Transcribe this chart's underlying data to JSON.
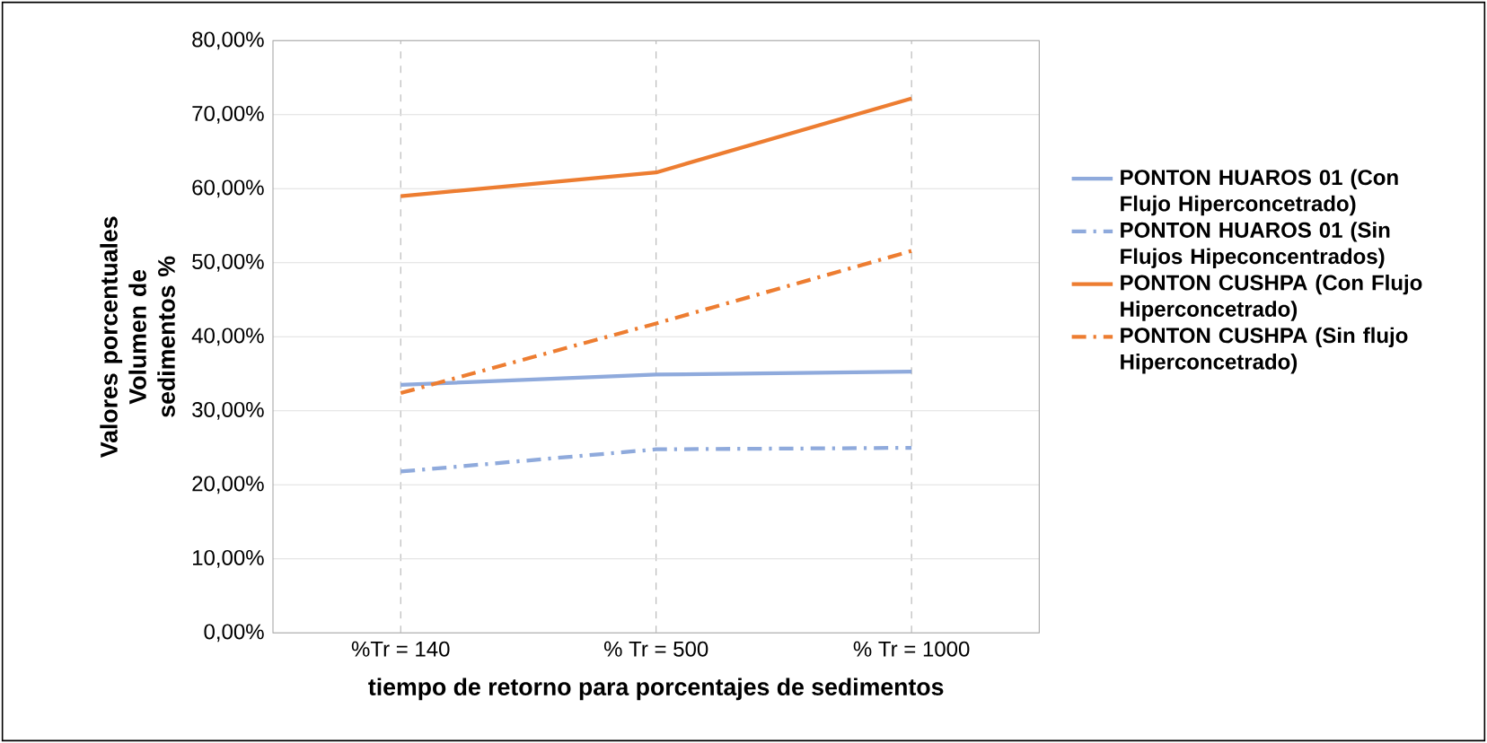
{
  "chart_data": {
    "type": "line",
    "xlabel": "tiempo de retorno para porcentajes de sedimentos",
    "ylabel": "Valores porcentuales Volumen de sedimentos %",
    "categories": [
      "%Tr = 140",
      "% Tr = 500",
      "% Tr = 1000"
    ],
    "series": [
      {
        "name": "PONTON HUAROS 01 (Con Flujo Hiperconcetrado)",
        "color": "#8faadc",
        "line_style": "solid",
        "values": [
          33.5,
          34.9,
          35.3
        ]
      },
      {
        "name": "PONTON HUAROS 01 (Sin Flujos Hipeconcentrados)",
        "color": "#8faadc",
        "line_style": "dashdot",
        "values": [
          21.8,
          24.8,
          25.0
        ]
      },
      {
        "name": "PONTON CUSHPA (Con Flujo Hiperconcetrado)",
        "color": "#ed7d31",
        "line_style": "solid",
        "values": [
          59.0,
          62.2,
          72.2
        ]
      },
      {
        "name": "PONTON CUSHPA (Sin flujo Hiperconcetrado)",
        "color": "#ed7d31",
        "line_style": "dashdot",
        "values": [
          32.4,
          41.8,
          51.6
        ]
      }
    ],
    "ylim": [
      0,
      80
    ],
    "yticks": [
      {
        "value": 0,
        "label": "0,00%"
      },
      {
        "value": 10,
        "label": "10,00%"
      },
      {
        "value": 20,
        "label": "20,00%"
      },
      {
        "value": 30,
        "label": "30,00%"
      },
      {
        "value": 40,
        "label": "40,00%"
      },
      {
        "value": 50,
        "label": "50,00%"
      },
      {
        "value": 60,
        "label": "60,00%"
      },
      {
        "value": 70,
        "label": "70,00%"
      },
      {
        "value": 80,
        "label": "80,00%"
      }
    ],
    "grid": true,
    "legend": "right",
    "marker": "none"
  }
}
